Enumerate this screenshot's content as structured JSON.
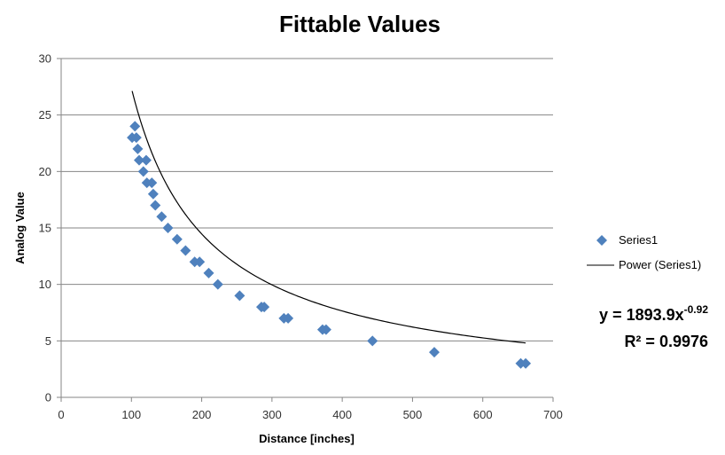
{
  "chart_data": {
    "type": "scatter",
    "title": "Fittable Values",
    "xlabel": "Distance [inches]",
    "ylabel": "Analog Value",
    "xlim": [
      0,
      700
    ],
    "ylim": [
      0,
      30
    ],
    "xticks": [
      0,
      100,
      200,
      300,
      400,
      500,
      600,
      700
    ],
    "yticks": [
      0,
      5,
      10,
      15,
      20,
      25,
      30
    ],
    "grid": "horizontal",
    "legend_position": "right",
    "series": [
      {
        "name": "Series1",
        "marker": "diamond",
        "color": "#4F81BD",
        "points": [
          [
            101,
            23
          ],
          [
            105,
            24
          ],
          [
            107,
            23
          ],
          [
            109,
            22
          ],
          [
            111,
            21
          ],
          [
            117,
            20
          ],
          [
            121,
            21
          ],
          [
            122,
            19
          ],
          [
            129,
            19
          ],
          [
            131,
            18
          ],
          [
            134,
            17
          ],
          [
            143,
            16
          ],
          [
            152,
            15
          ],
          [
            165,
            14
          ],
          [
            177,
            13
          ],
          [
            190,
            12
          ],
          [
            197,
            12
          ],
          [
            210,
            11
          ],
          [
            223,
            10
          ],
          [
            254,
            9
          ],
          [
            285,
            8
          ],
          [
            289,
            8
          ],
          [
            317,
            7
          ],
          [
            323,
            7
          ],
          [
            372,
            6
          ],
          [
            377,
            6
          ],
          [
            443,
            5
          ],
          [
            531,
            4
          ],
          [
            654,
            3
          ],
          [
            661,
            3
          ]
        ]
      }
    ],
    "trendline": {
      "name": "Power (Series1)",
      "type": "power",
      "coefficient": 1893.9,
      "exponent": -0.92,
      "x_range": [
        101,
        661
      ],
      "color": "#000000",
      "equation_text": "y = 1893.9x",
      "equation_exponent": "-0.92",
      "r_squared_text": "R² = 0.9976"
    }
  }
}
